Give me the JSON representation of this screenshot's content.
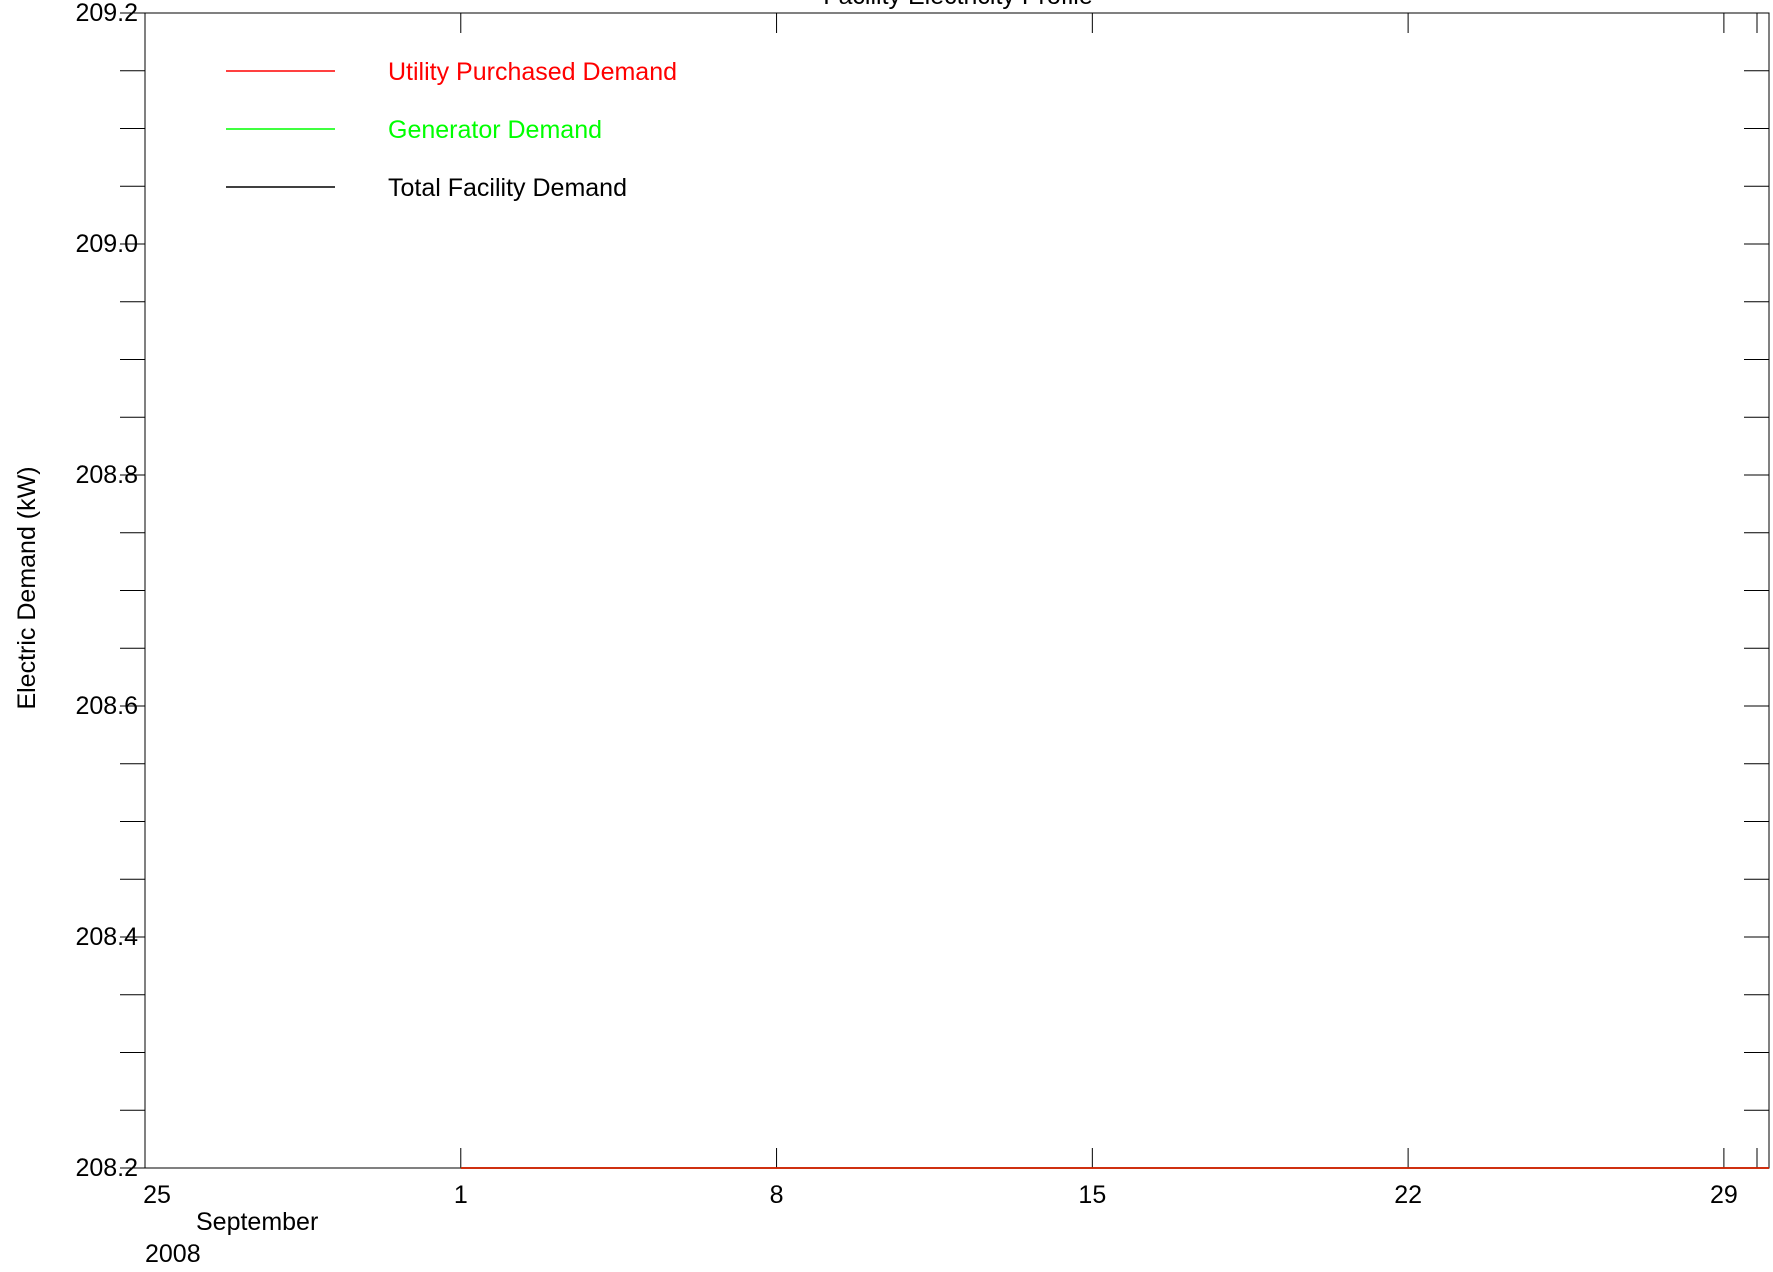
{
  "chart_data": {
    "type": "line",
    "title": "Facility Electricity Profile",
    "xlabel": "",
    "ylabel": "Electric Demand (kW)",
    "ylim": [
      208.2,
      209.2
    ],
    "xlim": [
      "2008-08-25",
      "2008-09-30"
    ],
    "y_ticks": [
      "209.2",
      "209.0",
      "208.8",
      "208.6",
      "208.4",
      "208.2"
    ],
    "x_ticks": [
      {
        "label": "25",
        "date": "2008-08-25"
      },
      {
        "label": "1",
        "date": "2008-09-01"
      },
      {
        "label": "8",
        "date": "2008-09-08"
      },
      {
        "label": "15",
        "date": "2008-09-15"
      },
      {
        "label": "22",
        "date": "2008-09-22"
      },
      {
        "label": "29",
        "date": "2008-09-29"
      }
    ],
    "x_month_label": "September",
    "x_year_label": "2008",
    "legend_position": "top-left",
    "grid": false,
    "series": [
      {
        "name": "Utility Purchased Demand",
        "color": "#ff0000",
        "x": [
          "2008-09-01",
          "2008-09-30"
        ],
        "y": [
          208.2,
          208.2
        ]
      },
      {
        "name": "Generator Demand",
        "color": "#00ff00",
        "x": [
          "2008-09-01",
          "2008-09-30"
        ],
        "y": [
          208.2,
          208.2
        ]
      },
      {
        "name": "Total Facility Demand",
        "color": "#000000",
        "x": [
          "2008-09-01",
          "2008-09-30"
        ],
        "y": [
          208.2,
          208.2
        ]
      }
    ]
  }
}
